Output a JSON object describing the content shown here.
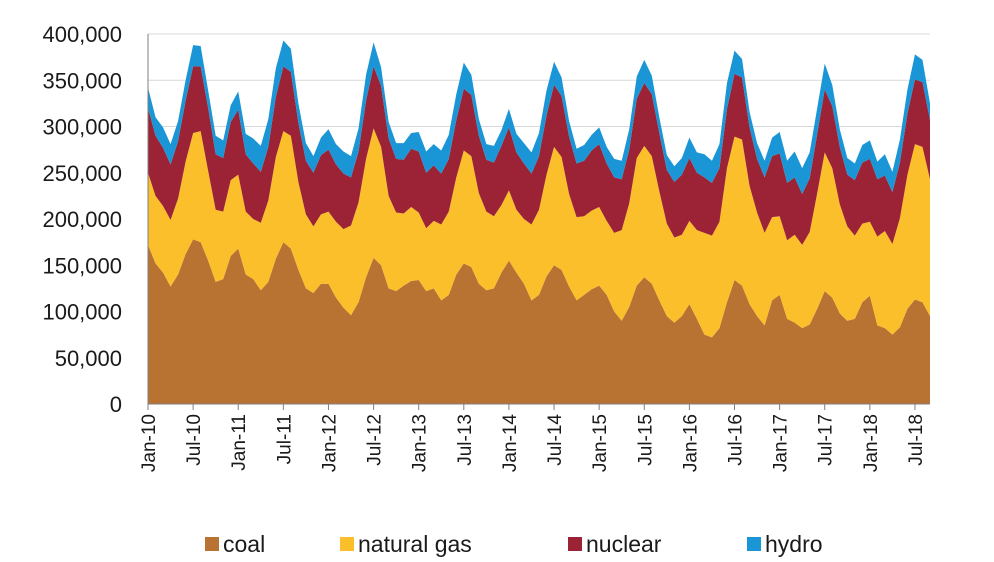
{
  "chart_data": {
    "type": "area",
    "stacked": true,
    "ylim": [
      0,
      400000
    ],
    "yticks": [
      0,
      50000,
      100000,
      150000,
      200000,
      250000,
      300000,
      350000,
      400000
    ],
    "ytick_labels": [
      "0",
      "50,000",
      "100,000",
      "150,000",
      "200,000",
      "250,000",
      "300,000",
      "350,000",
      "400,000"
    ],
    "grid": true,
    "legend_position": "bottom",
    "x": [
      "Jan-10",
      "Feb-10",
      "Mar-10",
      "Apr-10",
      "May-10",
      "Jun-10",
      "Jul-10",
      "Aug-10",
      "Sep-10",
      "Oct-10",
      "Nov-10",
      "Dec-10",
      "Jan-11",
      "Feb-11",
      "Mar-11",
      "Apr-11",
      "May-11",
      "Jun-11",
      "Jul-11",
      "Aug-11",
      "Sep-11",
      "Oct-11",
      "Nov-11",
      "Dec-11",
      "Jan-12",
      "Feb-12",
      "Mar-12",
      "Apr-12",
      "May-12",
      "Jun-12",
      "Jul-12",
      "Aug-12",
      "Sep-12",
      "Oct-12",
      "Nov-12",
      "Dec-12",
      "Jan-13",
      "Feb-13",
      "Mar-13",
      "Apr-13",
      "May-13",
      "Jun-13",
      "Jul-13",
      "Aug-13",
      "Sep-13",
      "Oct-13",
      "Nov-13",
      "Dec-13",
      "Jan-14",
      "Feb-14",
      "Mar-14",
      "Apr-14",
      "May-14",
      "Jun-14",
      "Jul-14",
      "Aug-14",
      "Sep-14",
      "Oct-14",
      "Nov-14",
      "Dec-14",
      "Jan-15",
      "Feb-15",
      "Mar-15",
      "Apr-15",
      "May-15",
      "Jun-15",
      "Jul-15",
      "Aug-15",
      "Sep-15",
      "Oct-15",
      "Nov-15",
      "Dec-15",
      "Jan-16",
      "Feb-16",
      "Mar-16",
      "Apr-16",
      "May-16",
      "Jun-16",
      "Jul-16",
      "Aug-16",
      "Sep-16",
      "Oct-16",
      "Nov-16",
      "Dec-16",
      "Jan-17",
      "Feb-17",
      "Mar-17",
      "Apr-17",
      "May-17",
      "Jun-17",
      "Jul-17",
      "Aug-17",
      "Sep-17",
      "Oct-17",
      "Nov-17",
      "Dec-17",
      "Jan-18",
      "Feb-18",
      "Mar-18",
      "Apr-18",
      "May-18",
      "Jun-18",
      "Jul-18",
      "Aug-18",
      "Sep-18"
    ],
    "xtick_labels": [
      "Jan-10",
      "Jul-10",
      "Jan-11",
      "Jul-11",
      "Jan-12",
      "Jul-12",
      "Jan-13",
      "Jul-13",
      "Jan-14",
      "Jul-14",
      "Jan-15",
      "Jul-15",
      "Jan-16",
      "Jul-16",
      "Jan-17",
      "Jul-17",
      "Jan-18",
      "Jul-18"
    ],
    "series": [
      {
        "name": "coal",
        "color": "#b87333",
        "values": [
          172000,
          152000,
          142000,
          127000,
          140000,
          162000,
          178000,
          175000,
          155000,
          132000,
          135000,
          160000,
          168000,
          140000,
          135000,
          123000,
          132000,
          157000,
          175000,
          168000,
          145000,
          125000,
          120000,
          130000,
          130000,
          115000,
          104000,
          96000,
          110000,
          137000,
          158000,
          150000,
          125000,
          122000,
          128000,
          133000,
          134000,
          122000,
          125000,
          112000,
          118000,
          140000,
          152000,
          148000,
          130000,
          123000,
          125000,
          142000,
          155000,
          142000,
          130000,
          112000,
          118000,
          138000,
          150000,
          145000,
          127000,
          112000,
          118000,
          124000,
          128000,
          118000,
          100000,
          90000,
          105000,
          128000,
          137000,
          130000,
          112000,
          95000,
          88000,
          95000,
          108000,
          92000,
          75000,
          72000,
          82000,
          110000,
          134000,
          128000,
          108000,
          95000,
          85000,
          112000,
          118000,
          92000,
          88000,
          82000,
          86000,
          103000,
          122000,
          115000,
          98000,
          90000,
          92000,
          110000,
          117000,
          85000,
          82000,
          75000,
          83000,
          103000,
          113000,
          110000,
          95000
        ]
      },
      {
        "name": "natural gas",
        "color": "#fbbf2b",
        "values": [
          78000,
          73000,
          72000,
          72000,
          82000,
          100000,
          115000,
          120000,
          97000,
          78000,
          73000,
          82000,
          80000,
          68000,
          65000,
          73000,
          88000,
          110000,
          120000,
          122000,
          95000,
          80000,
          72000,
          75000,
          78000,
          82000,
          85000,
          97000,
          108000,
          128000,
          140000,
          128000,
          100000,
          85000,
          78000,
          80000,
          73000,
          68000,
          73000,
          82000,
          90000,
          105000,
          122000,
          120000,
          98000,
          85000,
          78000,
          73000,
          76000,
          68000,
          70000,
          82000,
          92000,
          110000,
          128000,
          122000,
          100000,
          90000,
          85000,
          85000,
          85000,
          80000,
          85000,
          98000,
          112000,
          138000,
          142000,
          138000,
          118000,
          100000,
          92000,
          88000,
          90000,
          96000,
          110000,
          110000,
          115000,
          145000,
          155000,
          158000,
          128000,
          112000,
          100000,
          90000,
          85000,
          85000,
          95000,
          90000,
          100000,
          125000,
          150000,
          140000,
          118000,
          102000,
          90000,
          85000,
          80000,
          96000,
          105000,
          98000,
          118000,
          145000,
          168000,
          168000,
          148000
        ]
      },
      {
        "name": "nuclear",
        "color": "#9b2335",
        "values": [
          70000,
          65000,
          63000,
          60000,
          62000,
          66000,
          72000,
          70000,
          68000,
          60000,
          58000,
          63000,
          70000,
          62000,
          60000,
          55000,
          58000,
          65000,
          70000,
          69000,
          64000,
          58000,
          58000,
          64000,
          67000,
          62000,
          60000,
          52000,
          55000,
          63000,
          67000,
          66000,
          62000,
          58000,
          58000,
          63000,
          66000,
          60000,
          60000,
          55000,
          57000,
          62000,
          67000,
          66000,
          62000,
          56000,
          58000,
          64000,
          68000,
          62000,
          60000,
          55000,
          58000,
          64000,
          67000,
          66000,
          62000,
          58000,
          60000,
          65000,
          68000,
          62000,
          60000,
          55000,
          58000,
          64000,
          68000,
          67000,
          63000,
          58000,
          60000,
          65000,
          68000,
          62000,
          60000,
          57000,
          58000,
          64000,
          68000,
          67000,
          63000,
          58000,
          60000,
          66000,
          68000,
          62000,
          62000,
          55000,
          58000,
          64000,
          68000,
          67000,
          62000,
          56000,
          60000,
          66000,
          68000,
          62000,
          60000,
          56000,
          60000,
          66000,
          70000,
          70000,
          64000
        ]
      },
      {
        "name": "hydro",
        "color": "#1a96d6",
        "values": [
          22000,
          20000,
          22000,
          22000,
          22000,
          22000,
          23000,
          22000,
          19000,
          20000,
          19000,
          18000,
          20000,
          22000,
          27000,
          28000,
          30000,
          31000,
          28000,
          25000,
          21000,
          19000,
          18000,
          19000,
          22000,
          22000,
          24000,
          23000,
          25000,
          28000,
          26000,
          20000,
          18000,
          17000,
          18000,
          17000,
          21000,
          23000,
          23000,
          25000,
          26000,
          28000,
          28000,
          22000,
          18000,
          17000,
          18000,
          17000,
          20000,
          20000,
          22000,
          23000,
          25000,
          27000,
          25000,
          20000,
          17000,
          16000,
          17000,
          17000,
          18000,
          18000,
          20000,
          20000,
          22000,
          24000,
          25000,
          20000,
          17000,
          16000,
          17000,
          18000,
          22000,
          22000,
          25000,
          24000,
          26000,
          28000,
          25000,
          20000,
          17000,
          17000,
          18000,
          20000,
          23000,
          24000,
          28000,
          28000,
          28000,
          28000,
          28000,
          23000,
          19000,
          18000,
          18000,
          19000,
          20000,
          19000,
          23000,
          22000,
          25000,
          26000,
          27000,
          24000,
          18000
        ]
      }
    ]
  }
}
